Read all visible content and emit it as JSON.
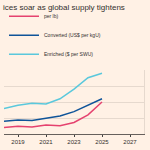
{
  "chart_data": {
    "type": "line",
    "title": "ices soar as global supply tightens",
    "x": [
      2018,
      2019,
      2020,
      2021,
      2022,
      2023,
      2024,
      2025
    ],
    "series": [
      {
        "name": "per lb)",
        "color": "#e5426f",
        "values": [
          10,
          12,
          11,
          14,
          13,
          18,
          30,
          50
        ]
      },
      {
        "name": "Converted (US$ per kgU)",
        "color": "#0f5499",
        "values": [
          20,
          22,
          21,
          24,
          28,
          35,
          45,
          55
        ]
      },
      {
        "name": "Enriched ($ per SWU)",
        "color": "#5ac8dc",
        "values": [
          40,
          45,
          48,
          47,
          55,
          70,
          88,
          95
        ]
      }
    ],
    "xlim": [
      2018,
      2028
    ],
    "xticks": [
      2019,
      2021,
      2023,
      2025,
      2027
    ],
    "ylim": [
      0,
      100
    ],
    "yticks": [
      0,
      25,
      50,
      75,
      100
    ],
    "grid": true,
    "legend": "top",
    "tick_labels": "x"
  }
}
